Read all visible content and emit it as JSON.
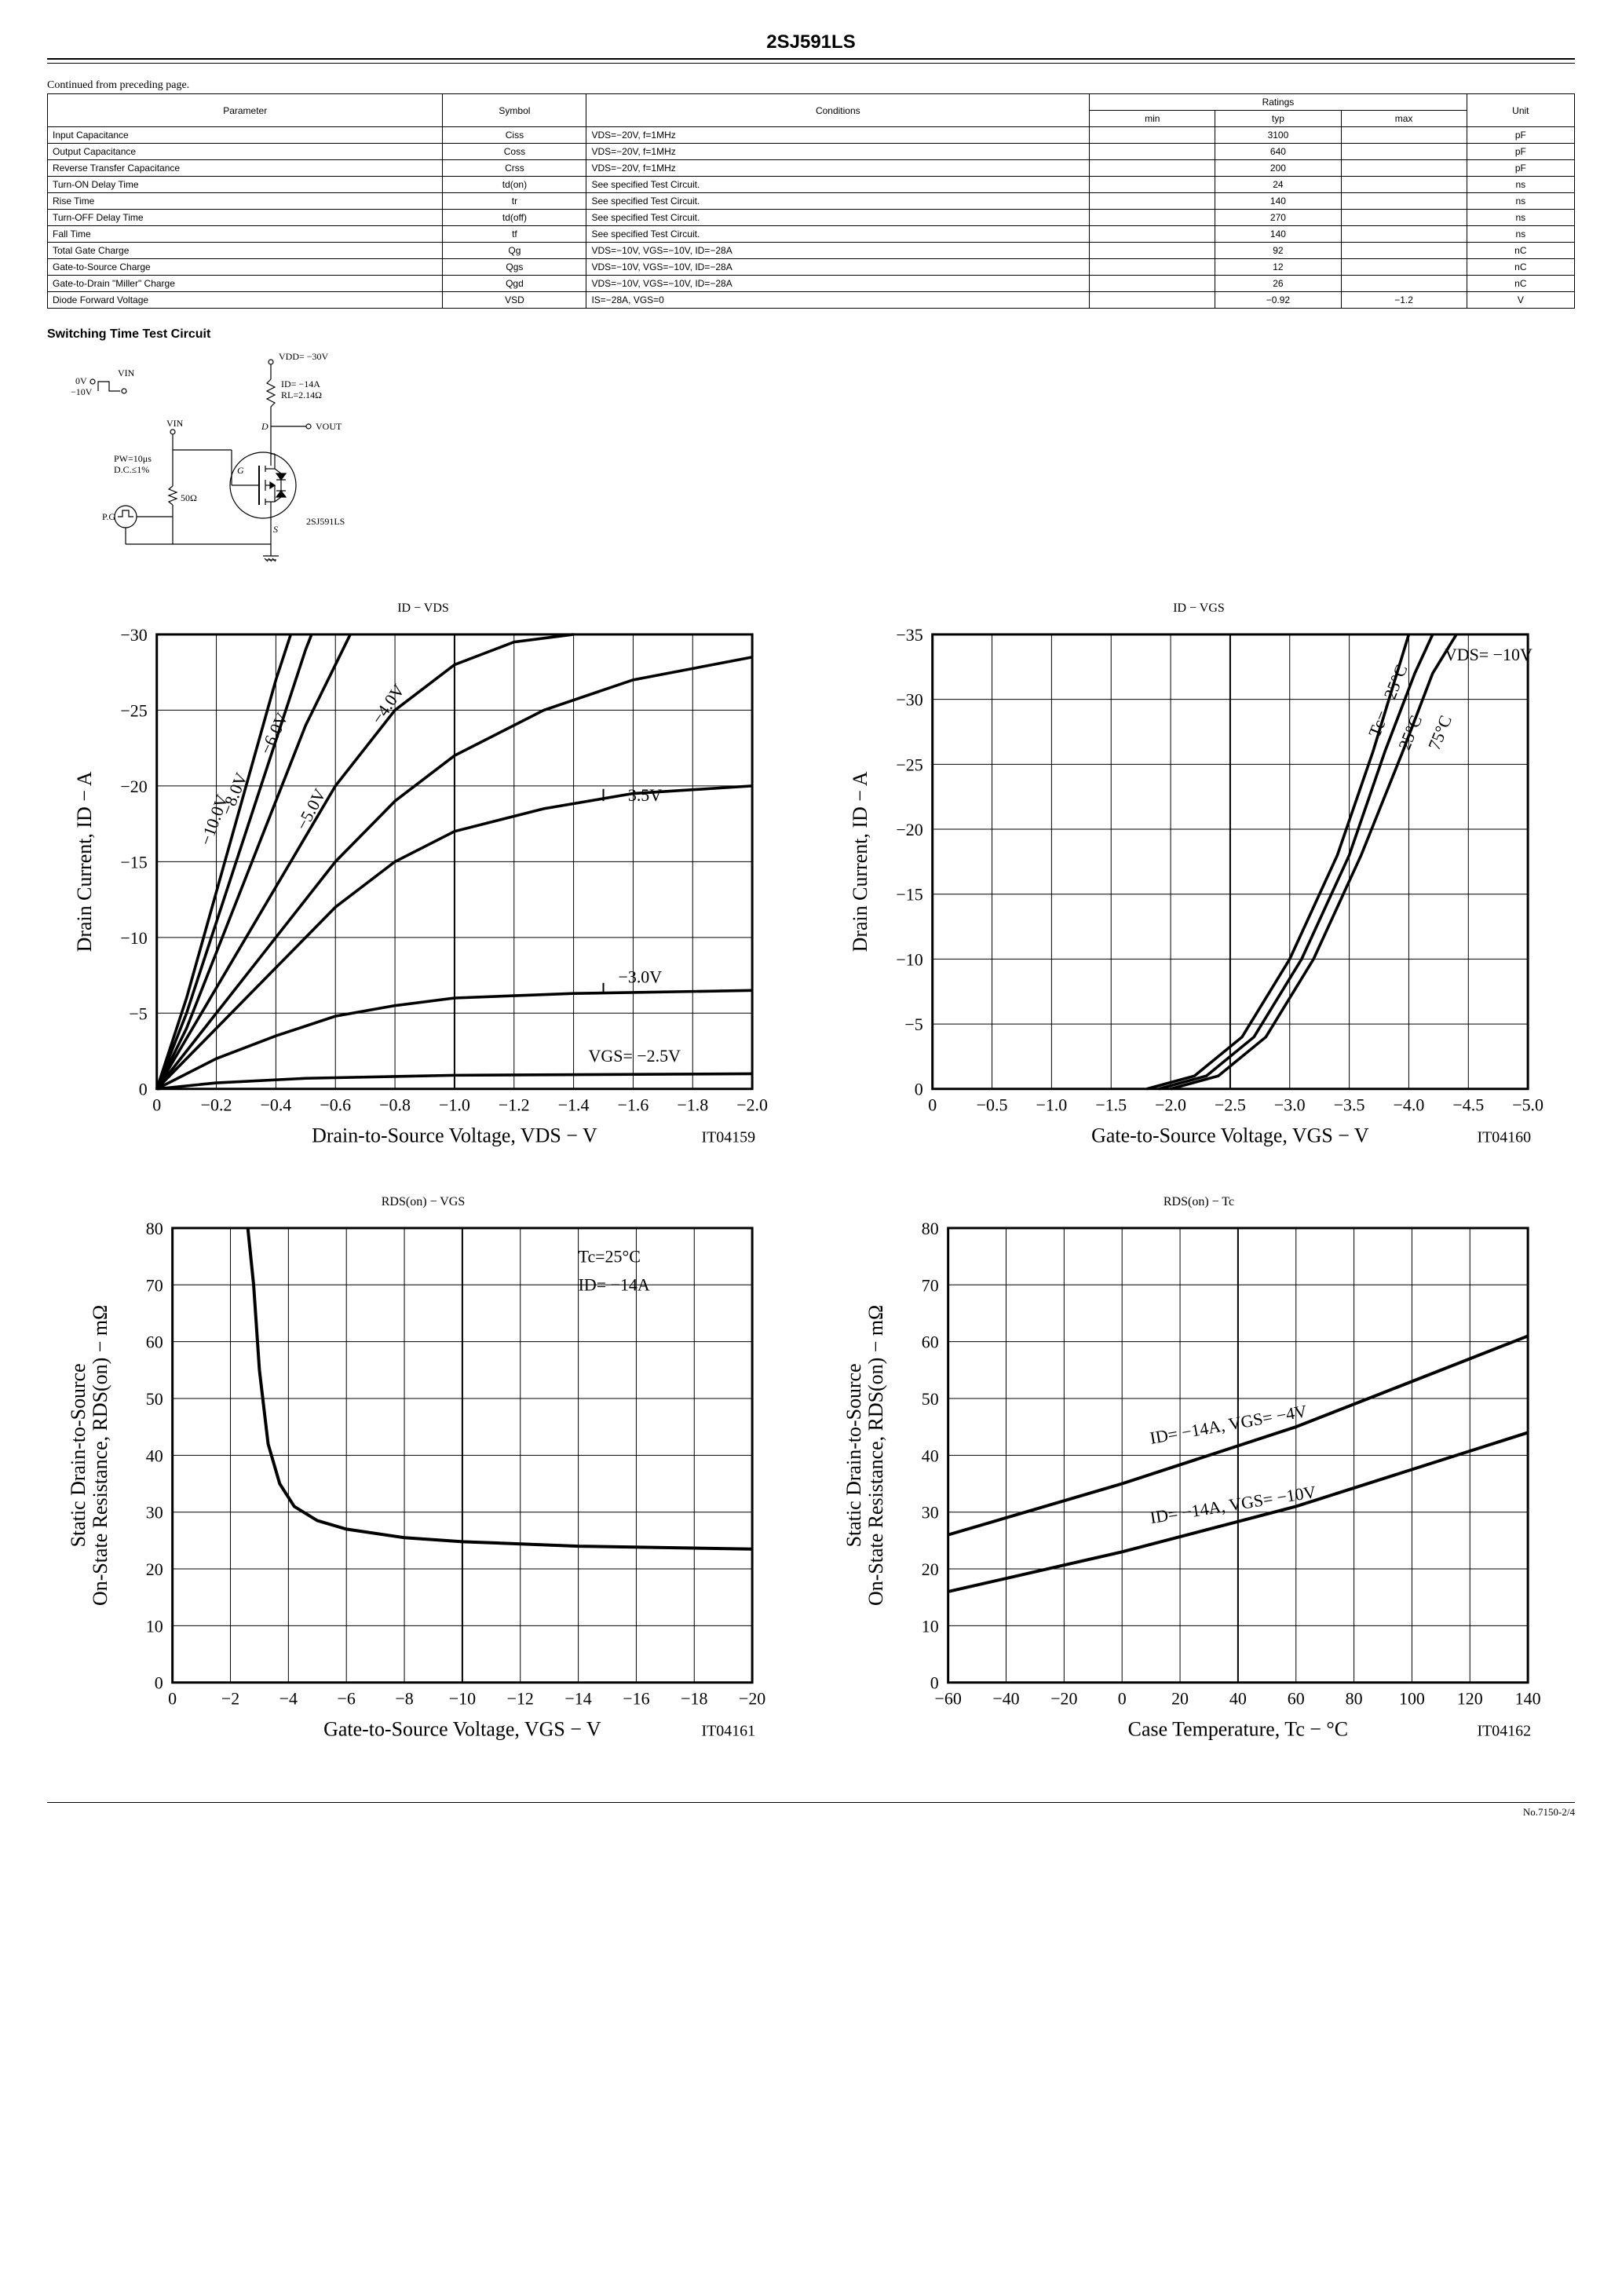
{
  "page": {
    "title": "2SJ591LS",
    "continued": "Continued from preceding page.",
    "page_number": "No.7150-2/4"
  },
  "table": {
    "headers": {
      "parameter": "Parameter",
      "symbol": "Symbol",
      "conditions": "Conditions",
      "ratings": "Ratings",
      "min": "min",
      "typ": "typ",
      "max": "max",
      "unit": "Unit"
    },
    "rows": [
      {
        "parameter": "Input Capacitance",
        "symbol": "Ciss",
        "conditions": "VDS=−20V, f=1MHz",
        "min": "",
        "typ": "3100",
        "max": "",
        "unit": "pF"
      },
      {
        "parameter": "Output Capacitance",
        "symbol": "Coss",
        "conditions": "VDS=−20V, f=1MHz",
        "min": "",
        "typ": "640",
        "max": "",
        "unit": "pF"
      },
      {
        "parameter": "Reverse Transfer Capacitance",
        "symbol": "Crss",
        "conditions": "VDS=−20V, f=1MHz",
        "min": "",
        "typ": "200",
        "max": "",
        "unit": "pF"
      },
      {
        "parameter": "Turn-ON Delay Time",
        "symbol": "td(on)",
        "conditions": "See specified Test Circuit.",
        "min": "",
        "typ": "24",
        "max": "",
        "unit": "ns"
      },
      {
        "parameter": "Rise Time",
        "symbol": "tr",
        "conditions": "See specified Test Circuit.",
        "min": "",
        "typ": "140",
        "max": "",
        "unit": "ns"
      },
      {
        "parameter": "Turn-OFF Delay Time",
        "symbol": "td(off)",
        "conditions": "See specified Test Circuit.",
        "min": "",
        "typ": "270",
        "max": "",
        "unit": "ns"
      },
      {
        "parameter": "Fall Time",
        "symbol": "tf",
        "conditions": "See specified Test Circuit.",
        "min": "",
        "typ": "140",
        "max": "",
        "unit": "ns"
      },
      {
        "parameter": "Total Gate Charge",
        "symbol": "Qg",
        "conditions": "VDS=−10V, VGS=−10V, ID=−28A",
        "min": "",
        "typ": "92",
        "max": "",
        "unit": "nC"
      },
      {
        "parameter": "Gate-to-Source Charge",
        "symbol": "Qgs",
        "conditions": "VDS=−10V, VGS=−10V, ID=−28A",
        "min": "",
        "typ": "12",
        "max": "",
        "unit": "nC"
      },
      {
        "parameter": "Gate-to-Drain \"Miller\" Charge",
        "symbol": "Qgd",
        "conditions": "VDS=−10V, VGS=−10V, ID=−28A",
        "min": "",
        "typ": "26",
        "max": "",
        "unit": "nC"
      },
      {
        "parameter": "Diode Forward Voltage",
        "symbol": "VSD",
        "conditions": "IS=−28A, VGS=0",
        "min": "",
        "typ": "−0.92",
        "max": "−1.2",
        "unit": "V"
      }
    ]
  },
  "circuit_heading": "Switching Time Test Circuit",
  "circuit": {
    "vdd": "VDD= −30V",
    "id": "ID= −14A",
    "rl": "RL=2.14Ω",
    "vout": "VOUT",
    "vin": "VIN",
    "hi": "0V",
    "lo": "−10V",
    "pw": "PW=10μs",
    "dc": "D.C.≤1%",
    "pg": "P.G",
    "r50": "50Ω",
    "part": "2SJ591LS",
    "d": "D",
    "g": "G",
    "s": "S"
  },
  "chart1": {
    "title": "ID  −  VDS",
    "xlabel": "Drain-to-Source Voltage, VDS  −  V",
    "ylabel": "Drain Current, ID  −  A",
    "ref": "IT04159",
    "xmin": 0,
    "xmax": -2.0,
    "xstep": -0.2,
    "ymin": 0,
    "ymax": -30,
    "ystep": -5,
    "xticks": [
      "0",
      "−0.2",
      "−0.4",
      "−0.6",
      "−0.8",
      "−1.0",
      "−1.2",
      "−1.4",
      "−1.6",
      "−1.8",
      "−2.0"
    ],
    "yticks": [
      "0",
      "−5",
      "−10",
      "−15",
      "−20",
      "−25",
      "−30"
    ],
    "curve_labels": [
      "−10.0V",
      "−8.0V",
      "−6.0V",
      "−5.0V",
      "−4.0V",
      "−3.5V",
      "−3.0V",
      "VGS= −2.5V"
    ],
    "colors": {
      "grid": "#000000",
      "bg": "#ffffff",
      "line": "#000000"
    }
  },
  "chart2": {
    "title": "ID  −  VGS",
    "xlabel": "Gate-to-Source Voltage, VGS  −  V",
    "ylabel": "Drain Current, ID  −  A",
    "ref": "IT04160",
    "xmin": 0,
    "xmax": -5.0,
    "xstep": -0.5,
    "ymin": 0,
    "ymax": -35,
    "ystep": -5,
    "xticks": [
      "0",
      "−0.5",
      "−1.0",
      "−1.5",
      "−2.0",
      "−2.5",
      "−3.0",
      "−3.5",
      "−4.0",
      "−4.5",
      "−5.0"
    ],
    "yticks": [
      "0",
      "−5",
      "−10",
      "−15",
      "−20",
      "−25",
      "−30",
      "−35"
    ],
    "vds_label": "VDS= −10V",
    "curve_labels": [
      "Tc= −25°C",
      "25°C",
      "75°C"
    ],
    "colors": {
      "grid": "#000000",
      "bg": "#ffffff",
      "line": "#000000"
    }
  },
  "chart3": {
    "title": "RDS(on)  −  VGS",
    "xlabel": "Gate-to-Source Voltage, VGS  −  V",
    "ylabel": "Static Drain-to-Source\nOn-State Resistance, RDS(on)  −  mΩ",
    "ref": "IT04161",
    "xmin": 0,
    "xmax": -20,
    "xstep": -2,
    "ymin": 0,
    "ymax": 80,
    "ystep": 10,
    "xticks": [
      "0",
      "−2",
      "−4",
      "−6",
      "−8",
      "−10",
      "−12",
      "−14",
      "−16",
      "−18",
      "−20"
    ],
    "yticks": [
      "0",
      "10",
      "20",
      "30",
      "40",
      "50",
      "60",
      "70",
      "80"
    ],
    "legend": {
      "l1": "Tc=25°C",
      "l2": "ID= −14A"
    },
    "colors": {
      "grid": "#000000",
      "bg": "#ffffff",
      "line": "#000000"
    }
  },
  "chart4": {
    "title": "RDS(on)  −  Tc",
    "xlabel": "Case Temperature, Tc  −  °C",
    "ylabel": "Static Drain-to-Source\nOn-State Resistance, RDS(on)  −  mΩ",
    "ref": "IT04162",
    "xmin": -60,
    "xmax": 140,
    "xstep": 20,
    "ymin": 0,
    "ymax": 80,
    "ystep": 10,
    "xticks": [
      "−60",
      "−40",
      "−20",
      "0",
      "20",
      "40",
      "60",
      "80",
      "100",
      "120",
      "140"
    ],
    "yticks": [
      "0",
      "10",
      "20",
      "30",
      "40",
      "50",
      "60",
      "70",
      "80"
    ],
    "curve_labels": [
      "ID= −14A, VGS= −4V",
      "ID= −14A, VGS= −10V"
    ],
    "colors": {
      "grid": "#000000",
      "bg": "#ffffff",
      "line": "#000000"
    }
  }
}
